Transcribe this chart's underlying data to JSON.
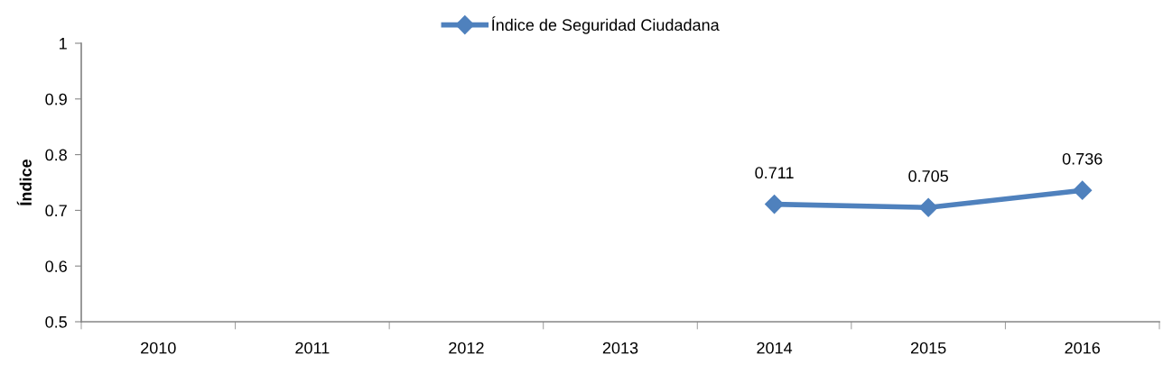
{
  "chart_data": {
    "type": "line",
    "categories": [
      "2010",
      "2011",
      "2012",
      "2013",
      "2014",
      "2015",
      "2016"
    ],
    "series": [
      {
        "name": "Índice de Seguridad Ciudadana",
        "color": "#4f81bd",
        "values": [
          null,
          null,
          null,
          null,
          0.711,
          0.705,
          0.736
        ]
      }
    ],
    "ylabel": "Índice",
    "ylim": [
      0.5,
      1
    ],
    "yticks": [
      0.5,
      0.6,
      0.7,
      0.8,
      0.9,
      1
    ],
    "data_labels": true,
    "legend": "top",
    "marker": "diamond",
    "line_style": "solid"
  }
}
